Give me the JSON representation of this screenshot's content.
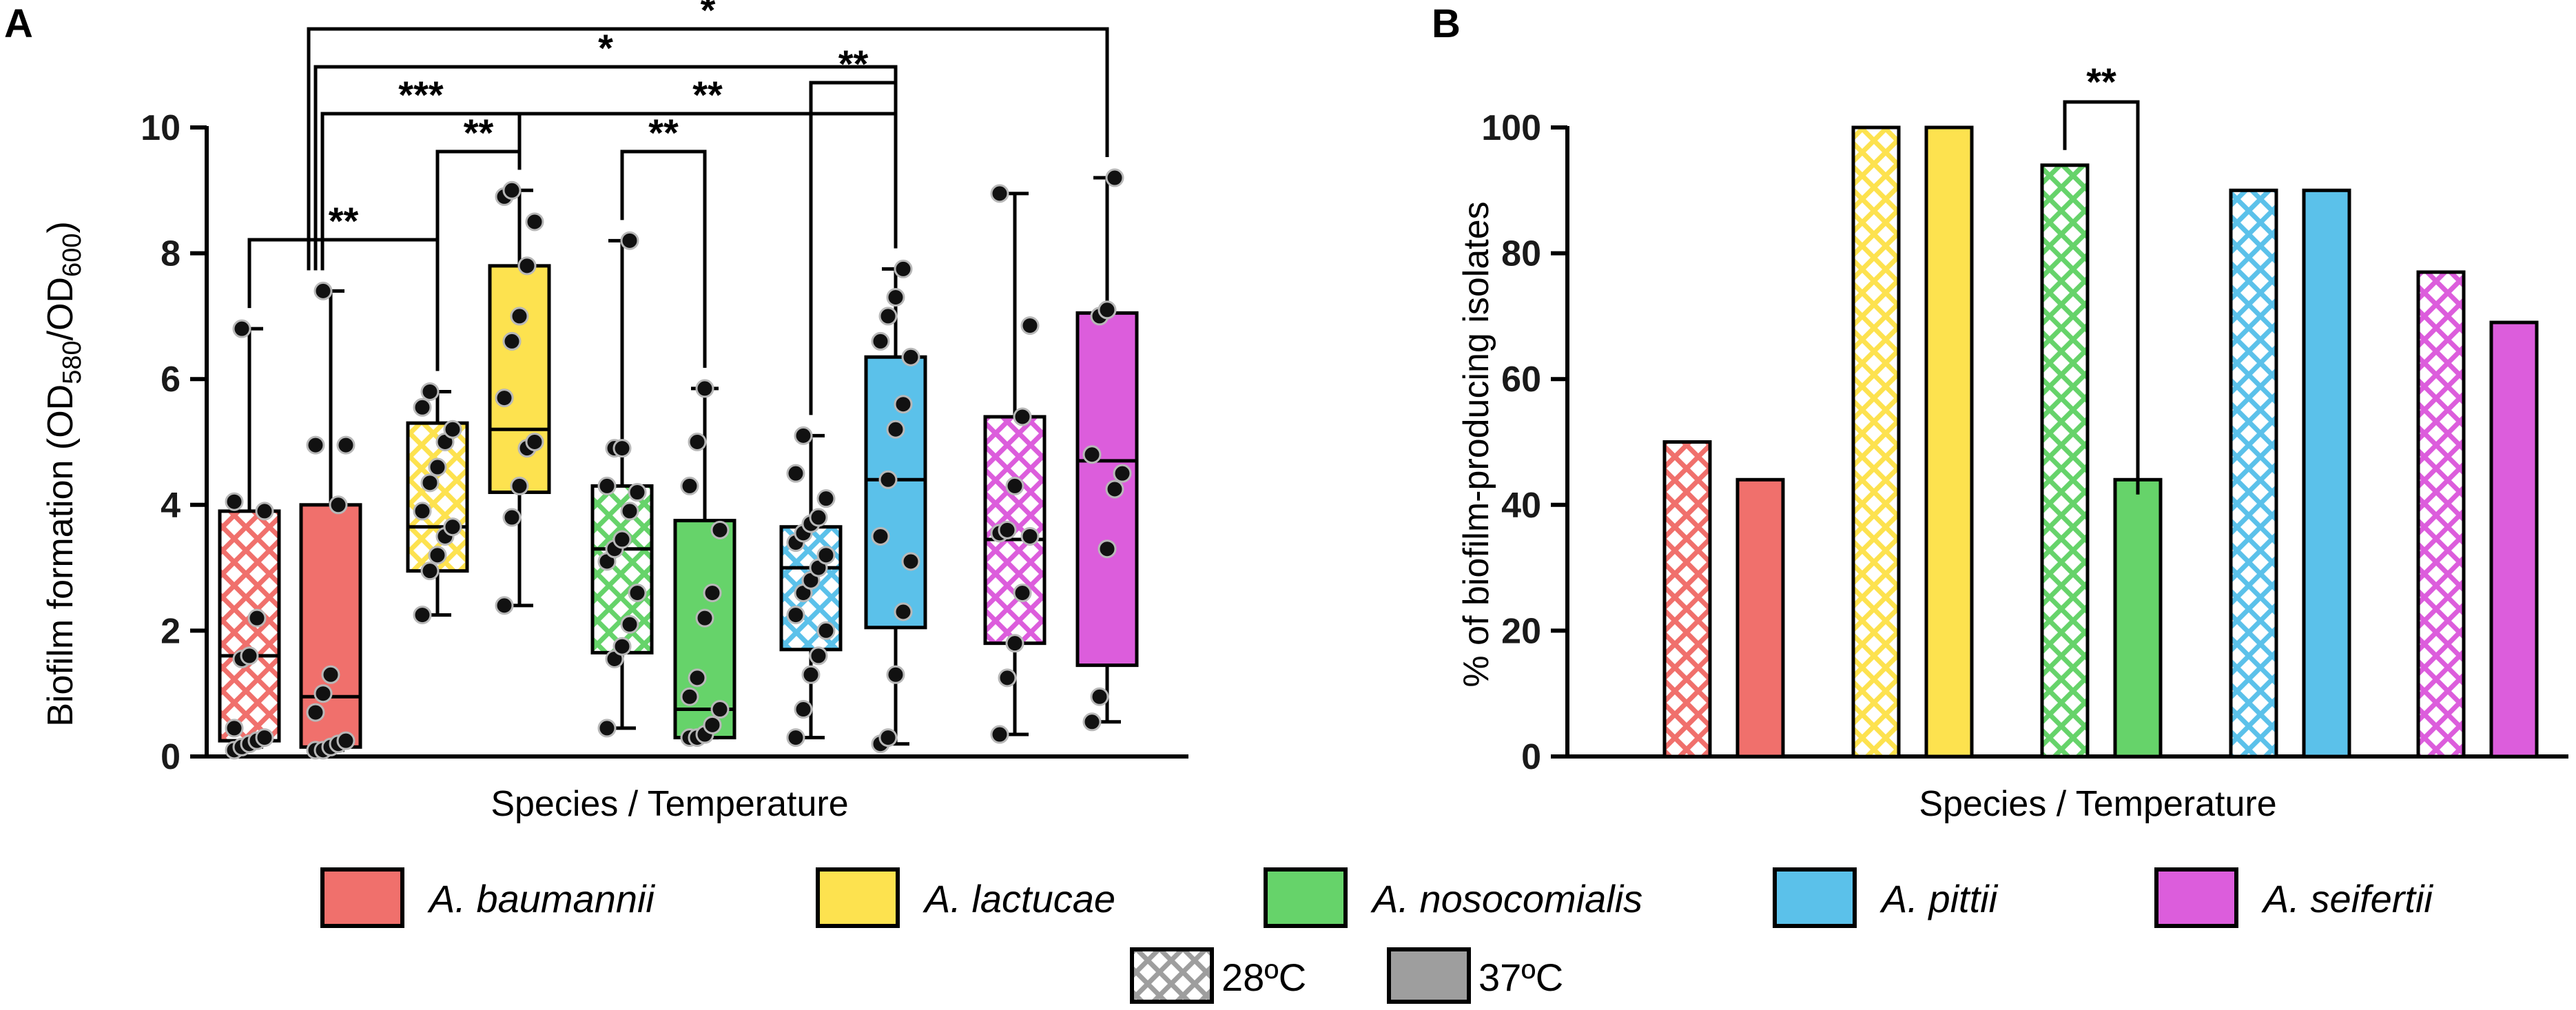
{
  "panels": {
    "a_letter": "A",
    "b_letter": "B"
  },
  "colors": {
    "A. baumannii": "#f0706c",
    "A. lactucae": "#fde24f",
    "A. nosocomialis": "#66d36a",
    "A. pittii": "#5bc1ea",
    "A. seifertii": "#dc5ddc",
    "gray": "#9e9e9e"
  },
  "legend": {
    "species": [
      "A. baumannii",
      "A. lactucae",
      "A. nosocomialis",
      "A. pittii",
      "A. seifertii"
    ],
    "temperatures": [
      "28ºC",
      "37ºC"
    ]
  },
  "chart_data": [
    {
      "type": "box",
      "panel": "A",
      "title": "",
      "xlabel": "Species / Temperature",
      "ylabel_main": "Biofilm formation (OD",
      "ylabel_sub1": "580",
      "ylabel_mid": "/OD",
      "ylabel_sub2": "600",
      "ylabel_end": ")",
      "ylim": [
        0,
        10
      ],
      "yticks": [
        0,
        2,
        4,
        6,
        8,
        10
      ],
      "groups": [
        {
          "species": "A. baumannii",
          "temp": "28ºC",
          "min": 0.15,
          "q1": 0.25,
          "median": 1.6,
          "q3": 3.9,
          "max": 6.8,
          "points": [
            0.1,
            0.15,
            0.2,
            0.25,
            0.3,
            0.45,
            1.55,
            1.6,
            2.2,
            3.9,
            4.05,
            6.8
          ]
        },
        {
          "species": "A. baumannii",
          "temp": "37ºC",
          "min": 0.1,
          "q1": 0.15,
          "median": 0.95,
          "q3": 4.0,
          "max": 7.4,
          "points": [
            0.1,
            0.1,
            0.15,
            0.2,
            0.25,
            0.7,
            1.0,
            1.3,
            4.0,
            4.95,
            4.95,
            7.4
          ]
        },
        {
          "species": "A. lactucae",
          "temp": "28ºC",
          "min": 2.25,
          "q1": 2.95,
          "median": 3.65,
          "q3": 5.3,
          "max": 5.8,
          "points": [
            2.25,
            2.95,
            3.2,
            3.5,
            3.65,
            3.9,
            4.35,
            4.6,
            5.0,
            5.2,
            5.55,
            5.8
          ]
        },
        {
          "species": "A. lactucae",
          "temp": "37ºC",
          "min": 2.4,
          "q1": 4.2,
          "median": 5.2,
          "q3": 7.8,
          "max": 9.0,
          "points": [
            2.4,
            3.8,
            4.3,
            4.9,
            5.0,
            5.7,
            6.6,
            7.0,
            7.8,
            8.5,
            8.9,
            9.0
          ]
        },
        {
          "species": "A. nosocomialis",
          "temp": "28ºC",
          "min": 0.45,
          "q1": 1.65,
          "median": 3.3,
          "q3": 4.3,
          "max": 8.2,
          "points": [
            0.45,
            1.55,
            1.75,
            2.1,
            2.6,
            3.1,
            3.3,
            3.45,
            3.9,
            4.2,
            4.3,
            4.9,
            4.9,
            8.2
          ]
        },
        {
          "species": "A. nosocomialis",
          "temp": "37ºC",
          "min": 0.3,
          "q1": 0.3,
          "median": 0.75,
          "q3": 3.75,
          "max": 5.85,
          "points": [
            0.3,
            0.3,
            0.35,
            0.5,
            0.75,
            0.95,
            1.25,
            2.2,
            2.6,
            3.6,
            4.3,
            5.0,
            5.85
          ]
        },
        {
          "species": "A. pittii",
          "temp": "28ºC",
          "min": 0.3,
          "q1": 1.7,
          "median": 3.0,
          "q3": 3.65,
          "max": 5.1,
          "points": [
            0.3,
            0.75,
            1.3,
            1.6,
            2.0,
            2.25,
            2.6,
            2.8,
            3.0,
            3.2,
            3.4,
            3.55,
            3.7,
            3.8,
            4.1,
            4.5,
            5.1
          ]
        },
        {
          "species": "A. pittii",
          "temp": "37ºC",
          "min": 0.2,
          "q1": 2.05,
          "median": 4.4,
          "q3": 6.35,
          "max": 7.75,
          "points": [
            0.2,
            0.3,
            1.3,
            2.3,
            3.1,
            3.5,
            4.4,
            5.2,
            5.6,
            6.35,
            6.6,
            7.0,
            7.3,
            7.75
          ]
        },
        {
          "species": "A. seifertii",
          "temp": "28ºC",
          "min": 0.35,
          "q1": 1.8,
          "median": 3.45,
          "q3": 5.4,
          "max": 8.95,
          "points": [
            0.35,
            1.25,
            1.8,
            2.6,
            3.5,
            3.55,
            3.6,
            4.3,
            5.4,
            6.85,
            8.95
          ]
        },
        {
          "species": "A. seifertii",
          "temp": "37ºC",
          "min": 0.55,
          "q1": 1.45,
          "median": 4.7,
          "q3": 7.05,
          "max": 9.2,
          "points": [
            0.55,
            0.95,
            3.3,
            4.25,
            4.5,
            4.8,
            7.0,
            7.1,
            9.2
          ]
        }
      ],
      "significance": [
        {
          "from": 0,
          "to": 2,
          "label": "**"
        },
        {
          "from": 2,
          "to": 3,
          "label": "**"
        },
        {
          "from": 4,
          "to": 5,
          "label": "**"
        },
        {
          "from": 6,
          "to": 7,
          "label": "**"
        },
        {
          "from": 1,
          "to": 3,
          "label": "***"
        },
        {
          "from": 3,
          "to": 7,
          "label": "**"
        },
        {
          "from": 1,
          "to": 7,
          "label": "*"
        },
        {
          "from": 1,
          "to": 9,
          "label": "*"
        }
      ]
    },
    {
      "type": "bar",
      "panel": "B",
      "title": "",
      "xlabel": "Species / Temperature",
      "ylabel": "% of biofilm-producing isolates",
      "ylim": [
        0,
        100
      ],
      "yticks": [
        0,
        20,
        40,
        60,
        80,
        100
      ],
      "categories": [
        "A. baumannii",
        "A. lactucae",
        "A. nosocomialis",
        "A. pittii",
        "A. seifertii"
      ],
      "series": [
        {
          "name": "28ºC",
          "values": [
            50,
            100,
            94,
            90,
            77
          ]
        },
        {
          "name": "37ºC",
          "values": [
            44,
            100,
            44,
            90,
            69
          ]
        }
      ],
      "significance": [
        {
          "category": "A. nosocomialis",
          "label": "**"
        }
      ]
    }
  ]
}
